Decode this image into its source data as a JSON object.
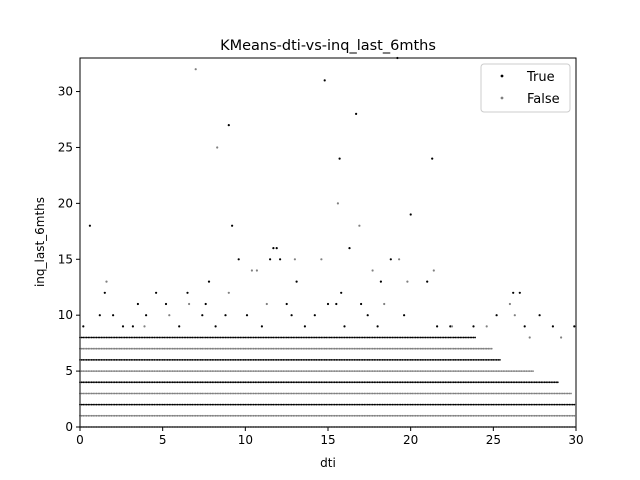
{
  "chart_data": {
    "type": "scatter",
    "title": "KMeans-dti-vs-inq_last_6mths",
    "xlabel": "dti",
    "ylabel": "inq_last_6mths",
    "xlim": [
      0,
      30
    ],
    "ylim": [
      0,
      33
    ],
    "xticks": [
      "0",
      "5",
      "10",
      "15",
      "20",
      "25",
      "30"
    ],
    "yticks": [
      "0",
      "5",
      "10",
      "15",
      "20",
      "25",
      "30"
    ],
    "grid": false,
    "legend": "top-right",
    "series": [
      {
        "name": "True",
        "color": "#000000",
        "points": [
          [
            0.6,
            18
          ],
          [
            1.5,
            12
          ],
          [
            2.0,
            10
          ],
          [
            3.5,
            11
          ],
          [
            4.6,
            12
          ],
          [
            5.2,
            11
          ],
          [
            6.5,
            12
          ],
          [
            7.6,
            11
          ],
          [
            7.8,
            13
          ],
          [
            8.8,
            10
          ],
          [
            9.0,
            27
          ],
          [
            9.2,
            18
          ],
          [
            9.6,
            15
          ],
          [
            11.5,
            15
          ],
          [
            11.7,
            16
          ],
          [
            11.9,
            16
          ],
          [
            12.1,
            15
          ],
          [
            12.5,
            11
          ],
          [
            13.1,
            13
          ],
          [
            14.8,
            31
          ],
          [
            15.0,
            11
          ],
          [
            15.5,
            11
          ],
          [
            15.7,
            24
          ],
          [
            15.8,
            12
          ],
          [
            16.3,
            16
          ],
          [
            16.7,
            28
          ],
          [
            17.0,
            11
          ],
          [
            18.2,
            13
          ],
          [
            18.8,
            15
          ],
          [
            19.2,
            33
          ],
          [
            20.0,
            19
          ],
          [
            21.0,
            13
          ],
          [
            21.3,
            24
          ],
          [
            26.2,
            12
          ],
          [
            26.6,
            12
          ],
          [
            27.8,
            10
          ],
          [
            29.9,
            9
          ],
          [
            0.2,
            9
          ],
          [
            1.2,
            10
          ],
          [
            2.6,
            9
          ],
          [
            3.2,
            9
          ],
          [
            4.0,
            10
          ],
          [
            6.0,
            9
          ],
          [
            7.4,
            10
          ],
          [
            8.2,
            9
          ],
          [
            10.1,
            10
          ],
          [
            11.0,
            9
          ],
          [
            12.8,
            10
          ],
          [
            13.6,
            9
          ],
          [
            14.2,
            10
          ],
          [
            16.0,
            9
          ],
          [
            17.4,
            10
          ],
          [
            18.0,
            9
          ],
          [
            19.6,
            10
          ],
          [
            21.6,
            9
          ],
          [
            22.4,
            9
          ],
          [
            23.8,
            9
          ],
          [
            25.2,
            10
          ],
          [
            26.9,
            9
          ],
          [
            28.6,
            9
          ]
        ]
      },
      {
        "name": "False",
        "color": "#808080",
        "points": [
          [
            7.0,
            32
          ],
          [
            8.3,
            25
          ],
          [
            15.6,
            20
          ],
          [
            16.9,
            18
          ],
          [
            17.7,
            14
          ],
          [
            19.3,
            15
          ],
          [
            21.4,
            14
          ],
          [
            10.4,
            14
          ],
          [
            10.7,
            14
          ],
          [
            11.3,
            11
          ],
          [
            9.0,
            12
          ],
          [
            6.6,
            11
          ],
          [
            13.0,
            15
          ],
          [
            14.6,
            15
          ],
          [
            18.4,
            11
          ],
          [
            19.8,
            13
          ],
          [
            22.5,
            9
          ],
          [
            24.6,
            9
          ],
          [
            26.0,
            11
          ],
          [
            26.3,
            10
          ],
          [
            27.2,
            8
          ],
          [
            29.1,
            8
          ],
          [
            1.6,
            13
          ],
          [
            3.9,
            9
          ],
          [
            5.4,
            10
          ]
        ]
      }
    ],
    "dense_rows": [
      {
        "y": 0,
        "xmax": 30.0,
        "color": "#808080"
      },
      {
        "y": 1,
        "xmax": 30.0,
        "color": "#808080"
      },
      {
        "y": 2,
        "xmax": 30.0,
        "color": "#000000"
      },
      {
        "y": 3,
        "xmax": 29.8,
        "color": "#808080"
      },
      {
        "y": 4,
        "xmax": 29.0,
        "color": "#000000"
      },
      {
        "y": 5,
        "xmax": 27.5,
        "color": "#808080"
      },
      {
        "y": 6,
        "xmax": 25.5,
        "color": "#000000"
      },
      {
        "y": 7,
        "xmax": 25.0,
        "color": "#808080"
      },
      {
        "y": 8,
        "xmax": 24.0,
        "color": "#000000"
      }
    ]
  }
}
